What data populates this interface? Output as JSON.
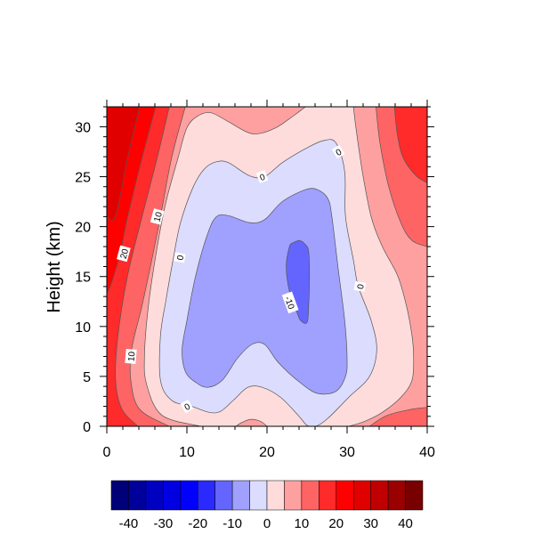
{
  "chart_data": {
    "type": "contour",
    "title": "",
    "xlabel": "",
    "ylabel": "Height (km)",
    "xlim": [
      0,
      40
    ],
    "ylim": [
      0,
      32
    ],
    "x_ticks": [
      "0",
      "10",
      "20",
      "30",
      "40"
    ],
    "y_ticks": [
      "0",
      "5",
      "10",
      "15",
      "20",
      "25",
      "30"
    ],
    "background_level_color": "#ffa0a0",
    "regions": [
      {
        "range": "10 to 15",
        "color": "#ff6464",
        "contour": [
          [
            9.8,
            32
          ],
          [
            8.1,
            26.9
          ],
          [
            6.7,
            21
          ],
          [
            5.6,
            16.6
          ],
          [
            4.4,
            12.1
          ],
          [
            3.1,
            7.7
          ],
          [
            3.0,
            4.6
          ],
          [
            4.1,
            1.7
          ],
          [
            7.8,
            0
          ]
        ],
        "close": [
          [
            0,
            0
          ],
          [
            0,
            32
          ]
        ]
      },
      {
        "range": "15 to 20",
        "color": "#ff2a2a",
        "contour": [
          [
            7.8,
            32
          ],
          [
            6.3,
            26.9
          ],
          [
            4.4,
            21
          ],
          [
            2.6,
            15.1
          ],
          [
            1.4,
            9.1
          ],
          [
            1.1,
            4.6
          ],
          [
            1.9,
            1.7
          ],
          [
            3.9,
            0
          ]
        ],
        "close": [
          [
            0,
            0
          ],
          [
            0,
            32
          ]
        ]
      },
      {
        "range": "20 to 25",
        "color": "#ff0000",
        "contour": [
          [
            6.1,
            32
          ],
          [
            4.4,
            26.9
          ],
          [
            2.6,
            21
          ],
          [
            1.7,
            17.5
          ],
          [
            0.6,
            14.4
          ],
          [
            0,
            13.3
          ]
        ],
        "close": [
          [
            0,
            32
          ]
        ]
      },
      {
        "range": "25 to 30",
        "color": "#e00000",
        "contour": [
          [
            4.1,
            32
          ],
          [
            2.6,
            26.9
          ],
          [
            1.1,
            21.1
          ],
          [
            0,
            21
          ]
        ],
        "close": [
          [
            0,
            32
          ]
        ]
      },
      {
        "range": "10 to 15",
        "color": "#ff6464",
        "contour": [
          [
            33.6,
            32
          ],
          [
            34.1,
            28.4
          ],
          [
            35.2,
            24
          ],
          [
            36.7,
            20.4
          ],
          [
            38.1,
            18.6
          ],
          [
            40,
            18
          ]
        ],
        "close": [
          [
            40,
            32
          ]
        ]
      },
      {
        "range": "15 to 20",
        "color": "#ff2a2a",
        "contour": [
          [
            35.9,
            32
          ],
          [
            36.3,
            29.1
          ],
          [
            37,
            26.9
          ],
          [
            38.6,
            25.1
          ],
          [
            40,
            24.4
          ]
        ],
        "close": [
          [
            40,
            32
          ]
        ]
      },
      {
        "range": "10 to 15",
        "color": "#ff6464",
        "contour": [
          [
            32.8,
            0
          ],
          [
            35,
            1.1
          ],
          [
            38,
            1.7
          ],
          [
            40,
            1.9
          ]
        ],
        "close": [
          [
            40,
            0
          ]
        ]
      },
      {
        "range": "0 to 5",
        "color": "#ffdcdc",
        "contour": [
          [
            30.8,
            32
          ],
          [
            31.1,
            29.9
          ],
          [
            31.9,
            25.5
          ],
          [
            33,
            21
          ],
          [
            34.4,
            18
          ],
          [
            36.3,
            15.1
          ],
          [
            37.4,
            12.1
          ],
          [
            38.1,
            9.1
          ],
          [
            38.3,
            7
          ],
          [
            38.1,
            4.6
          ],
          [
            36.7,
            2.9
          ],
          [
            34.4,
            1.4
          ],
          [
            32.2,
            0.5
          ],
          [
            30.2,
            0
          ]
        ],
        "close": [
          [
            11.7,
            0
          ]
        ],
        "contour2": [
          [
            11.7,
            0
          ],
          [
            6.9,
            1.1
          ],
          [
            5,
            4.1
          ],
          [
            4.7,
            7
          ],
          [
            5.2,
            12.1
          ],
          [
            6.3,
            18
          ],
          [
            7.4,
            22.5
          ],
          [
            8.9,
            26.9
          ],
          [
            10,
            29.9
          ],
          [
            11.4,
            31.1
          ],
          [
            13,
            31.4
          ],
          [
            15.2,
            30.5
          ],
          [
            17.4,
            29.5
          ],
          [
            18.9,
            29.3
          ],
          [
            21.1,
            29.9
          ],
          [
            23.3,
            31.1
          ],
          [
            24.8,
            32
          ]
        ]
      },
      {
        "range": "5 to 10",
        "color": "#ffa0a0",
        "contour": [
          [
            16.1,
            0
          ],
          [
            16.9,
            0.4
          ],
          [
            18,
            0.7
          ],
          [
            19.2,
            0.5
          ],
          [
            20,
            0
          ]
        ],
        "close": []
      },
      {
        "range": "-5 to 0",
        "color": "#dcdcff",
        "closed": true,
        "contour": [
          [
            28.6,
            28.4
          ],
          [
            27,
            28.6
          ],
          [
            24.8,
            27.8
          ],
          [
            21.9,
            26.4
          ],
          [
            19.7,
            25
          ],
          [
            17.8,
            25.1
          ],
          [
            15.2,
            26.4
          ],
          [
            13.7,
            26.5
          ],
          [
            12.2,
            25.8
          ],
          [
            10.8,
            24
          ],
          [
            9.2,
            20.4
          ],
          [
            8.3,
            16.8
          ],
          [
            7.4,
            12.7
          ],
          [
            6.7,
            9.1
          ],
          [
            6.7,
            4.6
          ],
          [
            8.1,
            2.6
          ],
          [
            10.6,
            2
          ],
          [
            12.8,
            1.4
          ],
          [
            14.2,
            1.5
          ],
          [
            15.8,
            2.6
          ],
          [
            17.6,
            3.9
          ],
          [
            19.4,
            3.9
          ],
          [
            21.7,
            2.9
          ],
          [
            23.9,
            1.1
          ],
          [
            25,
            0.1
          ],
          [
            26.1,
            0
          ],
          [
            27.6,
            0.8
          ],
          [
            30.2,
            2.9
          ],
          [
            32.8,
            5
          ],
          [
            33.7,
            7.7
          ],
          [
            33,
            10.6
          ],
          [
            31.4,
            14
          ],
          [
            30.8,
            16.6
          ],
          [
            29.8,
            21
          ],
          [
            29.7,
            25.5
          ]
        ]
      },
      {
        "range": "-10 to -5",
        "color": "#a0a0ff",
        "closed": true,
        "contour": [
          [
            26.3,
            23.7
          ],
          [
            24.8,
            23.7
          ],
          [
            21.9,
            22.5
          ],
          [
            19.7,
            20.7
          ],
          [
            17.8,
            20.4
          ],
          [
            15.2,
            21.1
          ],
          [
            13.7,
            21
          ],
          [
            12.6,
            19.3
          ],
          [
            11.1,
            15.1
          ],
          [
            10,
            10.6
          ],
          [
            9.4,
            7.7
          ],
          [
            9.8,
            5.5
          ],
          [
            11.1,
            4.4
          ],
          [
            12.6,
            3.9
          ],
          [
            14.4,
            4.6
          ],
          [
            16.3,
            6.8
          ],
          [
            18.1,
            8.2
          ],
          [
            19.7,
            8.2
          ],
          [
            21.4,
            6.4
          ],
          [
            24.1,
            4.4
          ],
          [
            26.3,
            3.3
          ],
          [
            28.6,
            3.5
          ],
          [
            29.8,
            5
          ],
          [
            30,
            6.8
          ],
          [
            29.7,
            10.6
          ],
          [
            28.9,
            15.7
          ],
          [
            28.1,
            21
          ],
          [
            27.6,
            22.8
          ]
        ]
      },
      {
        "range": "-15 to -10",
        "color": "#6464ff",
        "closed": true,
        "contour": [
          [
            24.1,
            18.6
          ],
          [
            24.8,
            18.2
          ],
          [
            25.2,
            17.5
          ],
          [
            25.3,
            15.1
          ],
          [
            25.2,
            12.1
          ],
          [
            25,
            10.4
          ],
          [
            24.2,
            10.6
          ],
          [
            23.7,
            11.5
          ],
          [
            22.8,
            13.5
          ],
          [
            22.4,
            16
          ],
          [
            22.8,
            18
          ],
          [
            23.3,
            18.4
          ]
        ]
      }
    ],
    "contour_labels": [
      {
        "text": "0",
        "x": 19.4,
        "y": 25
      },
      {
        "text": "0",
        "x": 28.9,
        "y": 27.5
      },
      {
        "text": "10",
        "x": 6.3,
        "y": 21
      },
      {
        "text": "20",
        "x": 2.1,
        "y": 17.3
      },
      {
        "text": "0",
        "x": 9.1,
        "y": 16.9
      },
      {
        "text": "-10",
        "x": 22.9,
        "y": 12.4
      },
      {
        "text": "0",
        "x": 31.6,
        "y": 14
      },
      {
        "text": "10",
        "x": 3.0,
        "y": 7
      },
      {
        "text": "0",
        "x": 10.0,
        "y": 2
      }
    ],
    "colorbar": {
      "colors": [
        "#000078",
        "#00009a",
        "#0000c0",
        "#0000e0",
        "#0000ff",
        "#2a2aff",
        "#6464ff",
        "#a0a0ff",
        "#dcdcff",
        "#ffdcdc",
        "#ffa0a0",
        "#ff6464",
        "#ff2a2a",
        "#ff0000",
        "#e00000",
        "#c00000",
        "#9a0000",
        "#780000"
      ],
      "labels": [
        "-40",
        "-30",
        "-20",
        "-10",
        "0",
        "10",
        "20",
        "30",
        "40"
      ]
    }
  }
}
